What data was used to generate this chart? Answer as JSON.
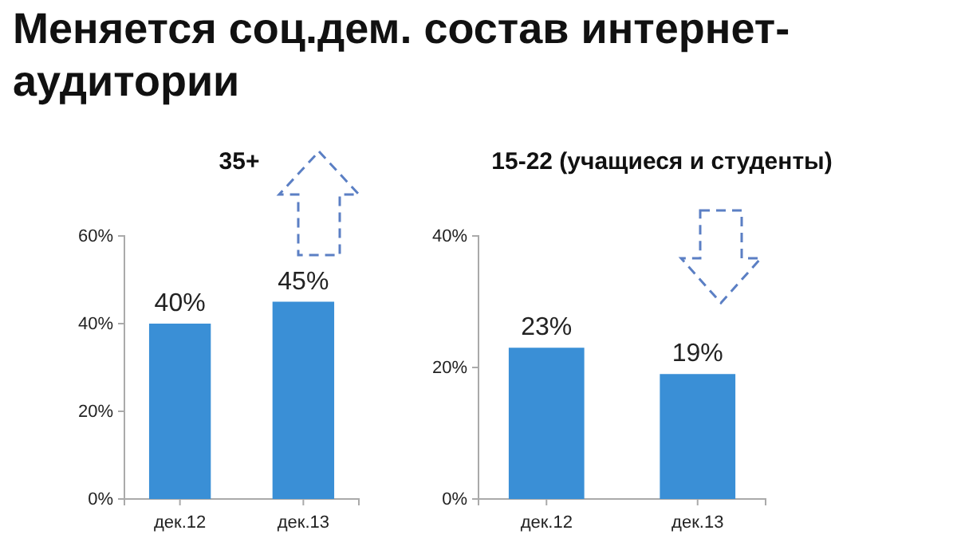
{
  "chart_data": [
    {
      "type": "other",
      "title": "Меняется соц.дем. состав интернет-аудитории"
    },
    {
      "type": "bar",
      "title": "35+",
      "categories": [
        "дек.12",
        "дек.13"
      ],
      "values": [
        40,
        45
      ],
      "value_labels": [
        "40%",
        "45%"
      ],
      "color": "#3a8fd6",
      "ylim": [
        0,
        60
      ],
      "yticks": [
        {
          "value": 0,
          "label": "0%"
        },
        {
          "value": 20,
          "label": "20%"
        },
        {
          "value": 40,
          "label": "40%"
        },
        {
          "value": 60,
          "label": "60%"
        }
      ]
    },
    {
      "type": "bar",
      "title": "15-22 (учащиеся и студенты)",
      "categories": [
        "дек.12",
        "дек.13"
      ],
      "values": [
        23,
        19
      ],
      "value_labels": [
        "23%",
        "19%"
      ],
      "color": "#3a8fd6",
      "ylim": [
        0,
        40
      ],
      "yticks": [
        {
          "value": 0,
          "label": "0%"
        },
        {
          "value": 20,
          "label": "20%"
        },
        {
          "value": 40,
          "label": "40%"
        }
      ]
    }
  ]
}
